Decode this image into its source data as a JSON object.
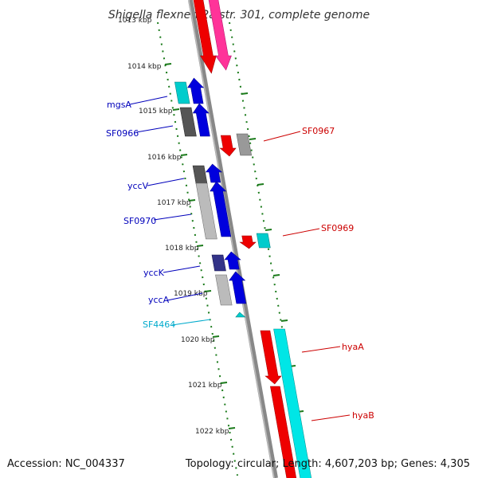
{
  "title": "Shigella flexneri 2a str. 301, complete genome",
  "footer": {
    "accession": "Accession: NC_004337",
    "summary": "Topology: circular; Length: 4,607,203 bp; Genes: 4,305"
  },
  "kbp_labels": [
    "1013 kbp",
    "1014 kbp",
    "1015 kbp",
    "1016 kbp",
    "1017 kbp",
    "1018 kbp",
    "1019 kbp",
    "1020 kbp",
    "1021 kbp",
    "1022 kbp"
  ],
  "gene_labels": {
    "left": [
      "mgsA",
      "SF0966",
      "yccV",
      "SF0970",
      "yccK",
      "yccA",
      "SF4464"
    ],
    "right": [
      "SF0967",
      "SF0969",
      "hyaA",
      "hyaB"
    ]
  },
  "colors": {
    "forward_cds": "#0000dd",
    "reverse_cds": "#dd0000",
    "rna_gene": "#00cccc",
    "pseudo_gene": "#ff3399",
    "other_gene": "#999999",
    "dark_gene": "#555555",
    "purple_gene": "#333388",
    "backbone": "#888888",
    "ticks": "#1a7a1a",
    "left_label": "#0000bb",
    "right_label": "#cc0000",
    "cyan_label": "#00aacc"
  }
}
